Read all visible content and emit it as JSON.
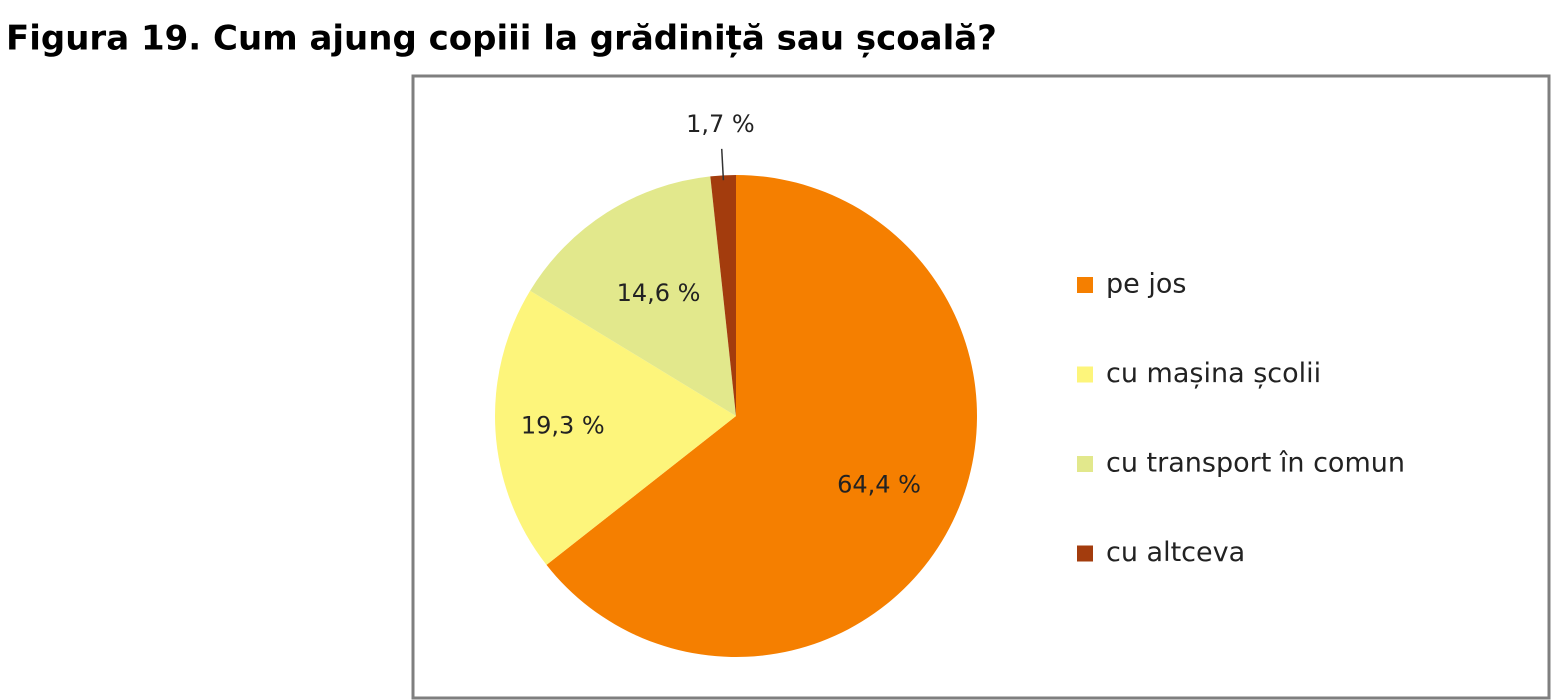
{
  "chart_data": {
    "type": "pie",
    "title": "Figura 19. Cum ajung copiii la grădiniță sau școală?",
    "categories": [
      "pe jos",
      "cu mașina școlii",
      "cu transport în comun",
      "cu altceva"
    ],
    "values": [
      64.4,
      19.3,
      14.6,
      1.7
    ],
    "value_labels": [
      "64,4 %",
      "19,3 %",
      "14,6 %",
      "1,7 %"
    ],
    "colors": [
      "#f57f00",
      "#fdf57b",
      "#e2e88c",
      "#a33c0d"
    ],
    "legend": "right"
  }
}
